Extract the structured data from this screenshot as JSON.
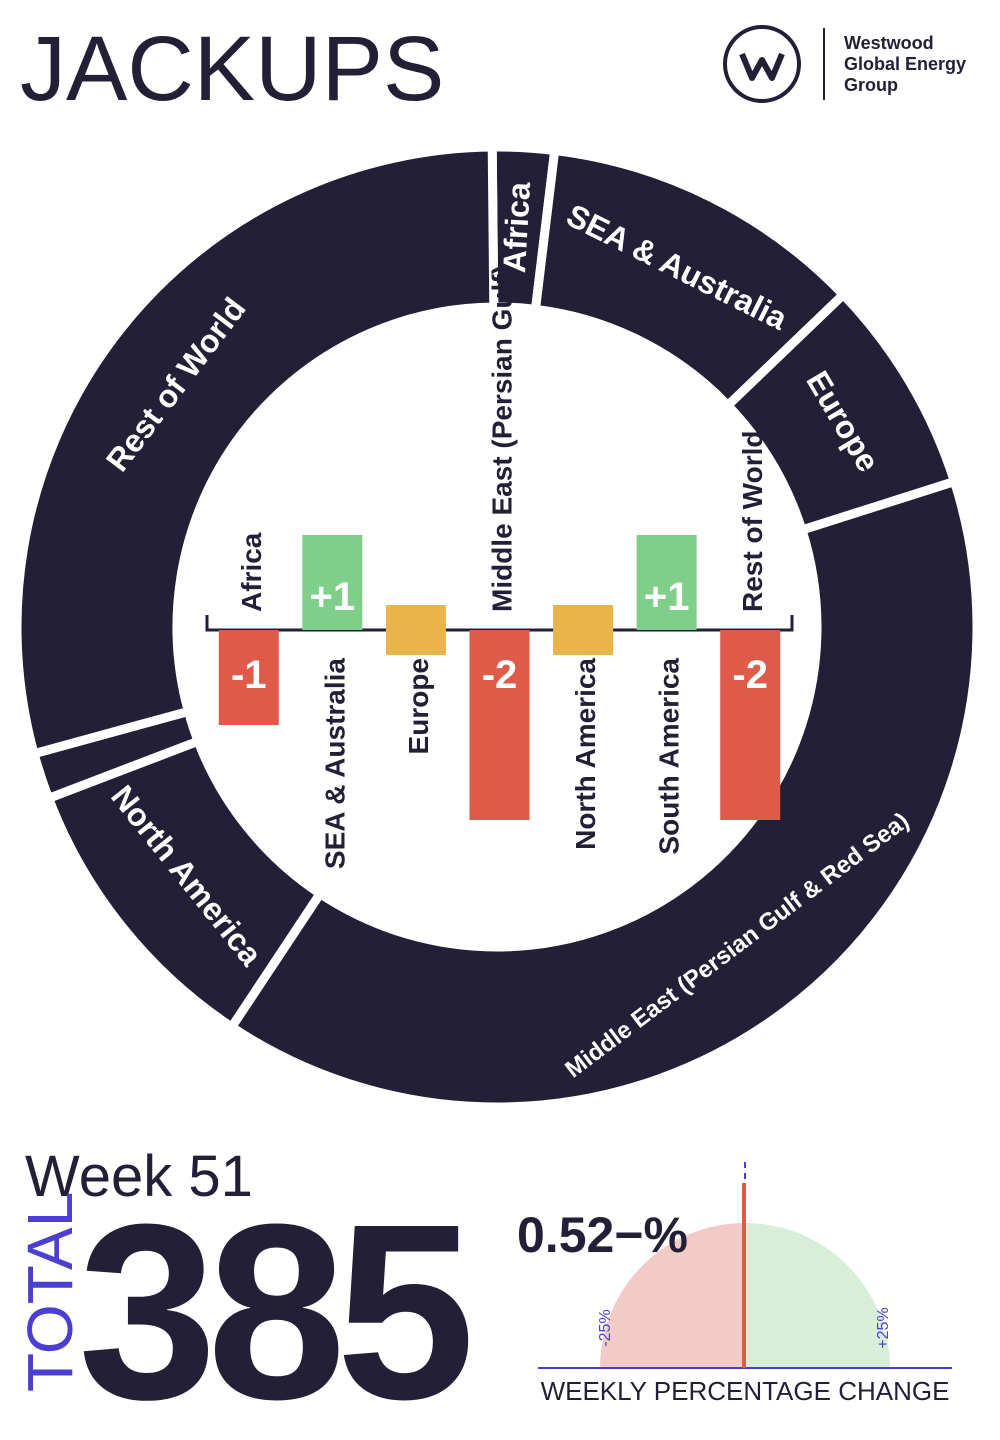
{
  "header": {
    "title": "JACKUPS",
    "logo_lines": [
      "Westwood",
      "Global Energy",
      "Group"
    ]
  },
  "summary": {
    "week": "Week 51",
    "total_label": "TOTAL",
    "total": "385"
  },
  "chart_data": [
    {
      "type": "donut",
      "categories": [
        "Africa",
        "SEA & Australia",
        "Europe",
        "Middle East (Persian Gulf & Red Sea)",
        "North America",
        null,
        "Rest of World"
      ],
      "values": [
        8,
        42,
        28,
        151,
        38,
        6,
        112
      ],
      "color": "#221f36"
    },
    {
      "type": "bar",
      "categories": [
        "Africa",
        "SEA & Australia",
        "Europe",
        "Middle East (Persian Gulf)",
        "North America",
        "South America",
        "Rest of World"
      ],
      "values": [
        -1,
        1,
        0,
        -2,
        0,
        1,
        -2
      ],
      "value_labels": [
        "-1",
        "+1",
        null,
        "-2",
        null,
        "+1",
        "-2"
      ],
      "colors": {
        "negative": "#df5a49",
        "positive": "#7fcf8a",
        "zero": "#e9b44c"
      }
    },
    {
      "type": "gauge",
      "title": "WEEKLY PERCENTAGE CHANGE",
      "value": -0.52,
      "value_label": "0.52−%",
      "xlim": [
        -25,
        25
      ],
      "xticks": [
        {
          "value": -25,
          "label": "-25%"
        },
        {
          "value": 25,
          "label": "+25%"
        }
      ],
      "colors": {
        "negative": "#f2cbc6",
        "positive": "#d7efd9",
        "needle": "#df5a49",
        "axis": "#4a3fd0"
      }
    }
  ]
}
